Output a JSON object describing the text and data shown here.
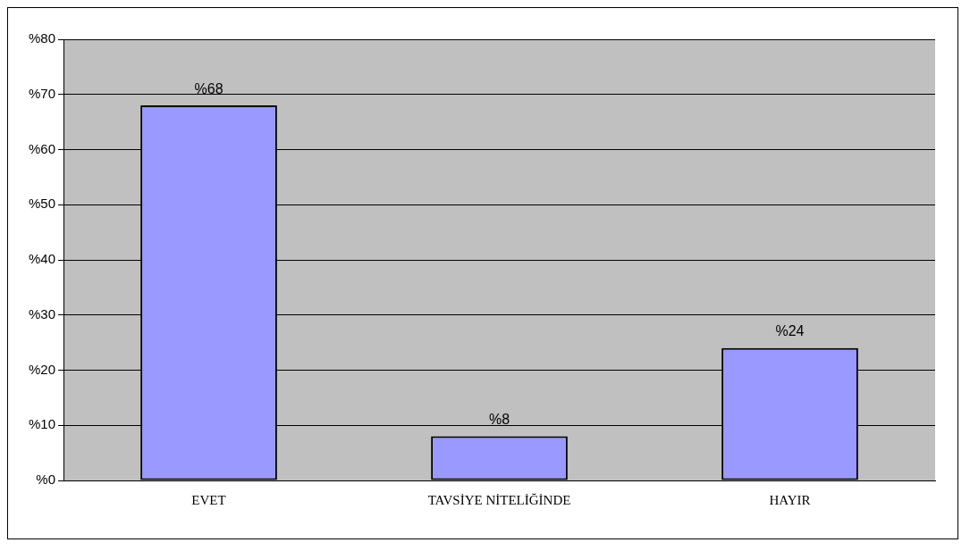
{
  "chart_data": {
    "type": "bar",
    "categories": [
      "EVET",
      "TAVSİYE NİTELİĞİNDE",
      "HAYIR"
    ],
    "values": [
      68,
      8,
      24
    ],
    "color": "#9999ff",
    "value_labels": [
      "%68",
      "%8",
      "%24"
    ],
    "ylim": [
      0,
      80
    ],
    "yticks": [
      {
        "value": 0,
        "label": "%0"
      },
      {
        "value": 10,
        "label": "%10"
      },
      {
        "value": 20,
        "label": "%20"
      },
      {
        "value": 30,
        "label": "%30"
      },
      {
        "value": 40,
        "label": "%40"
      },
      {
        "value": 50,
        "label": "%50"
      },
      {
        "value": 60,
        "label": "%60"
      },
      {
        "value": 70,
        "label": "%70"
      },
      {
        "value": 80,
        "label": "%80"
      }
    ],
    "grid": "y"
  }
}
